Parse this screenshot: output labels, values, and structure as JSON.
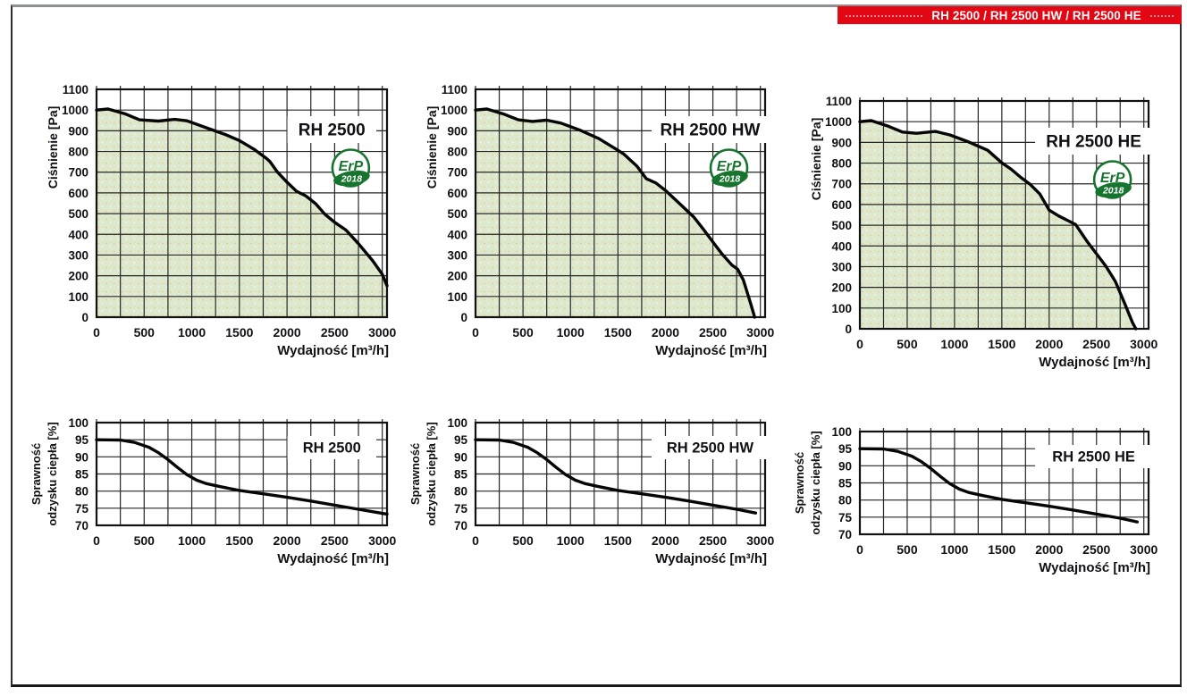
{
  "header": {
    "title": "RH 2500 / RH 2500 HW / RH 2500 HE",
    "background": "#e30613",
    "text_color": "#ffffff"
  },
  "erp_badge": {
    "line1": "ErP",
    "line2": "2018",
    "color": "#17742f"
  },
  "colors": {
    "area_fill": "#dde9cf",
    "speckle": "#f4c276",
    "grid": "#262626",
    "plot_border": "#111111",
    "curve": "#060606",
    "label": "#101015"
  },
  "chart_data": [
    {
      "id": "pressure-rh2500",
      "type": "area",
      "title": "RH 2500",
      "ylabel": [
        "Ciśnienie [Pa]"
      ],
      "xlabel": "Wydajność [m³/h]",
      "xlim": [
        0,
        3050
      ],
      "ylim": [
        0,
        1100
      ],
      "xticks": [
        0,
        500,
        1000,
        1500,
        2000,
        2500,
        3000
      ],
      "yticks": [
        0,
        100,
        200,
        300,
        400,
        500,
        600,
        700,
        800,
        900,
        1000,
        1100
      ],
      "grid_x_step": 250,
      "grid_y_step": 100,
      "grid": true,
      "legend": "none",
      "erp_badge": true,
      "x": [
        0,
        120,
        300,
        450,
        650,
        820,
        950,
        1150,
        1350,
        1500,
        1650,
        1780,
        1820,
        1900,
        2000,
        2100,
        2200,
        2300,
        2400,
        2500,
        2620,
        2750,
        2900,
        3000,
        3050
      ],
      "y": [
        1000,
        1005,
        982,
        953,
        947,
        955,
        948,
        915,
        882,
        853,
        812,
        768,
        752,
        700,
        652,
        608,
        585,
        548,
        496,
        458,
        420,
        355,
        272,
        207,
        152
      ]
    },
    {
      "id": "pressure-rh2500hw",
      "type": "area",
      "title": "RH 2500 HW",
      "ylabel": [
        "Ciśnienie [Pa]"
      ],
      "xlabel": "Wydajność [m³/h]",
      "xlim": [
        0,
        3050
      ],
      "ylim": [
        0,
        1100
      ],
      "xticks": [
        0,
        500,
        1000,
        1500,
        2000,
        2500,
        3000
      ],
      "yticks": [
        0,
        100,
        200,
        300,
        400,
        500,
        600,
        700,
        800,
        900,
        1000,
        1100
      ],
      "grid_x_step": 250,
      "grid_y_step": 100,
      "grid": true,
      "legend": "none",
      "erp_badge": true,
      "x": [
        0,
        120,
        300,
        450,
        600,
        750,
        900,
        1100,
        1300,
        1500,
        1560,
        1700,
        1800,
        1900,
        2000,
        2150,
        2300,
        2400,
        2500,
        2600,
        2700,
        2760,
        2820,
        2900,
        2940
      ],
      "y": [
        1000,
        1005,
        980,
        953,
        945,
        951,
        937,
        903,
        862,
        806,
        788,
        729,
        668,
        648,
        612,
        548,
        483,
        424,
        363,
        303,
        252,
        232,
        180,
        62,
        0
      ]
    },
    {
      "id": "pressure-rh2500he",
      "type": "area",
      "title": "RH 2500 HE",
      "ylabel": [
        "Ciśnienie [Pa]"
      ],
      "xlabel": "Wydajność [m³/h]",
      "xlim": [
        0,
        3050
      ],
      "ylim": [
        0,
        1100
      ],
      "xticks": [
        0,
        500,
        1000,
        1500,
        2000,
        2500,
        3000
      ],
      "yticks": [
        0,
        100,
        200,
        300,
        400,
        500,
        600,
        700,
        800,
        900,
        1000,
        1100
      ],
      "grid_x_step": 250,
      "grid_y_step": 100,
      "grid": true,
      "legend": "none",
      "erp_badge": true,
      "x": [
        0,
        120,
        300,
        450,
        600,
        800,
        950,
        1150,
        1350,
        1500,
        1600,
        1700,
        1800,
        1900,
        2000,
        2100,
        2200,
        2280,
        2400,
        2500,
        2600,
        2700,
        2800,
        2880,
        2915
      ],
      "y": [
        1000,
        1005,
        978,
        950,
        944,
        953,
        936,
        902,
        862,
        801,
        770,
        731,
        697,
        652,
        573,
        545,
        522,
        503,
        422,
        362,
        302,
        228,
        120,
        30,
        0
      ]
    },
    {
      "id": "efficiency-rh2500",
      "type": "line",
      "title": "RH 2500",
      "ylabel": [
        "Sprawność",
        "odzysku ciepła [%]"
      ],
      "xlabel": "Wydajność [m³/h]",
      "xlim": [
        0,
        3050
      ],
      "ylim": [
        70,
        100
      ],
      "xticks": [
        0,
        500,
        1000,
        1500,
        2000,
        2500,
        3000
      ],
      "yticks": [
        70,
        75,
        80,
        85,
        90,
        95,
        100
      ],
      "grid_x_step": 250,
      "grid_y_step": 5,
      "grid": true,
      "legend": "none",
      "erp_badge": false,
      "x": [
        0,
        250,
        400,
        550,
        650,
        750,
        850,
        950,
        1050,
        1150,
        1300,
        1500,
        1750,
        2000,
        2250,
        2500,
        2750,
        3000,
        3050
      ],
      "y": [
        95,
        94.9,
        94.2,
        92.8,
        91.2,
        89.2,
        86.9,
        84.8,
        83.2,
        82.2,
        81.3,
        80.2,
        79.2,
        78.2,
        77.1,
        75.9,
        74.7,
        73.5,
        73.3
      ]
    },
    {
      "id": "efficiency-rh2500hw",
      "type": "line",
      "title": "RH 2500 HW",
      "ylabel": [
        "Sprawność",
        "odzysku ciepła [%]"
      ],
      "xlabel": "Wydajność [m³/h]",
      "xlim": [
        0,
        3050
      ],
      "ylim": [
        70,
        100
      ],
      "xticks": [
        0,
        500,
        1000,
        1500,
        2000,
        2500,
        3000
      ],
      "yticks": [
        70,
        75,
        80,
        85,
        90,
        95,
        100
      ],
      "grid_x_step": 250,
      "grid_y_step": 5,
      "grid": true,
      "legend": "none",
      "erp_badge": false,
      "x": [
        0,
        250,
        400,
        550,
        650,
        750,
        850,
        950,
        1050,
        1150,
        1300,
        1500,
        1750,
        2000,
        2250,
        2500,
        2750,
        2950
      ],
      "y": [
        95,
        94.9,
        94.2,
        92.8,
        91.2,
        89.2,
        86.9,
        84.8,
        83.2,
        82.2,
        81.3,
        80.2,
        79.2,
        78.2,
        77.1,
        75.9,
        74.7,
        73.6
      ]
    },
    {
      "id": "efficiency-rh2500he",
      "type": "line",
      "title": "RH 2500 HE",
      "ylabel": [
        "Sprawność",
        "odzysku ciepła [%]"
      ],
      "xlabel": "Wydajność [m³/h]",
      "xlim": [
        0,
        3050
      ],
      "ylim": [
        70,
        100
      ],
      "xticks": [
        0,
        500,
        1000,
        1500,
        2000,
        2500,
        3000
      ],
      "yticks": [
        70,
        75,
        80,
        85,
        90,
        95,
        100
      ],
      "grid_x_step": 250,
      "grid_y_step": 5,
      "grid": true,
      "legend": "none",
      "erp_badge": false,
      "x": [
        0,
        250,
        400,
        550,
        650,
        750,
        850,
        950,
        1050,
        1150,
        1300,
        1500,
        1750,
        2000,
        2250,
        2500,
        2750,
        2930
      ],
      "y": [
        95,
        94.9,
        94.2,
        92.8,
        91.2,
        89.2,
        86.9,
        84.8,
        83.2,
        82.2,
        81.3,
        80.2,
        79.2,
        78.2,
        77.1,
        75.9,
        74.7,
        73.6
      ]
    }
  ]
}
